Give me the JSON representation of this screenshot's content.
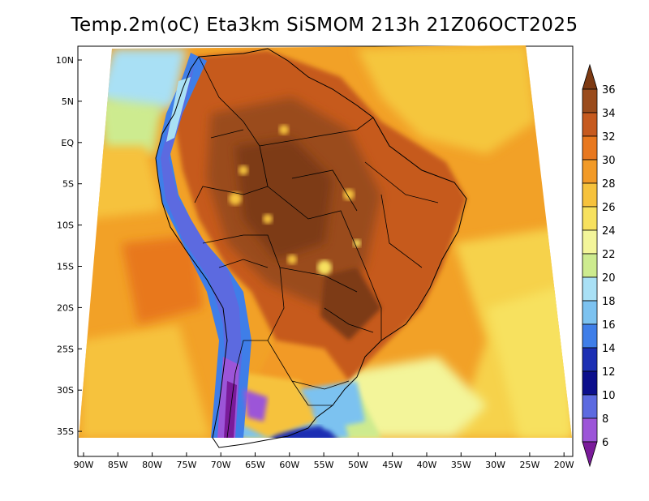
{
  "title": "Temp.2m(oC) Eta3km SiSMOM 213h 21Z06OCT2025",
  "map": {
    "lat_ticks": [
      "10N",
      "5N",
      "EQ",
      "5S",
      "10S",
      "15S",
      "20S",
      "25S",
      "30S",
      "35S"
    ],
    "lon_ticks": [
      "90W",
      "85W",
      "80W",
      "75W",
      "70W",
      "65W",
      "60W",
      "55W",
      "50W",
      "45W",
      "40W",
      "35W",
      "30W",
      "25W",
      "20W"
    ],
    "lat_range": [
      12,
      -37.5
    ],
    "lon_range": [
      -90,
      -20
    ]
  },
  "colorbar": {
    "labels": [
      "36",
      "34",
      "32",
      "30",
      "28",
      "26",
      "24",
      "22",
      "20",
      "18",
      "16",
      "14",
      "12",
      "10",
      "8",
      "6"
    ],
    "colors": [
      "#7d3a13",
      "#9a4b1c",
      "#c65a1f",
      "#e8781f",
      "#f29a27",
      "#f6c23c",
      "#f7e15e",
      "#f3f59a",
      "#cdeb8f",
      "#a9e0f5",
      "#7cc2f0",
      "#3f7ee8",
      "#1c2fb3",
      "#0c0f8c",
      "#5c6ae0",
      "#9c55d8",
      "#7a1b9a"
    ]
  }
}
